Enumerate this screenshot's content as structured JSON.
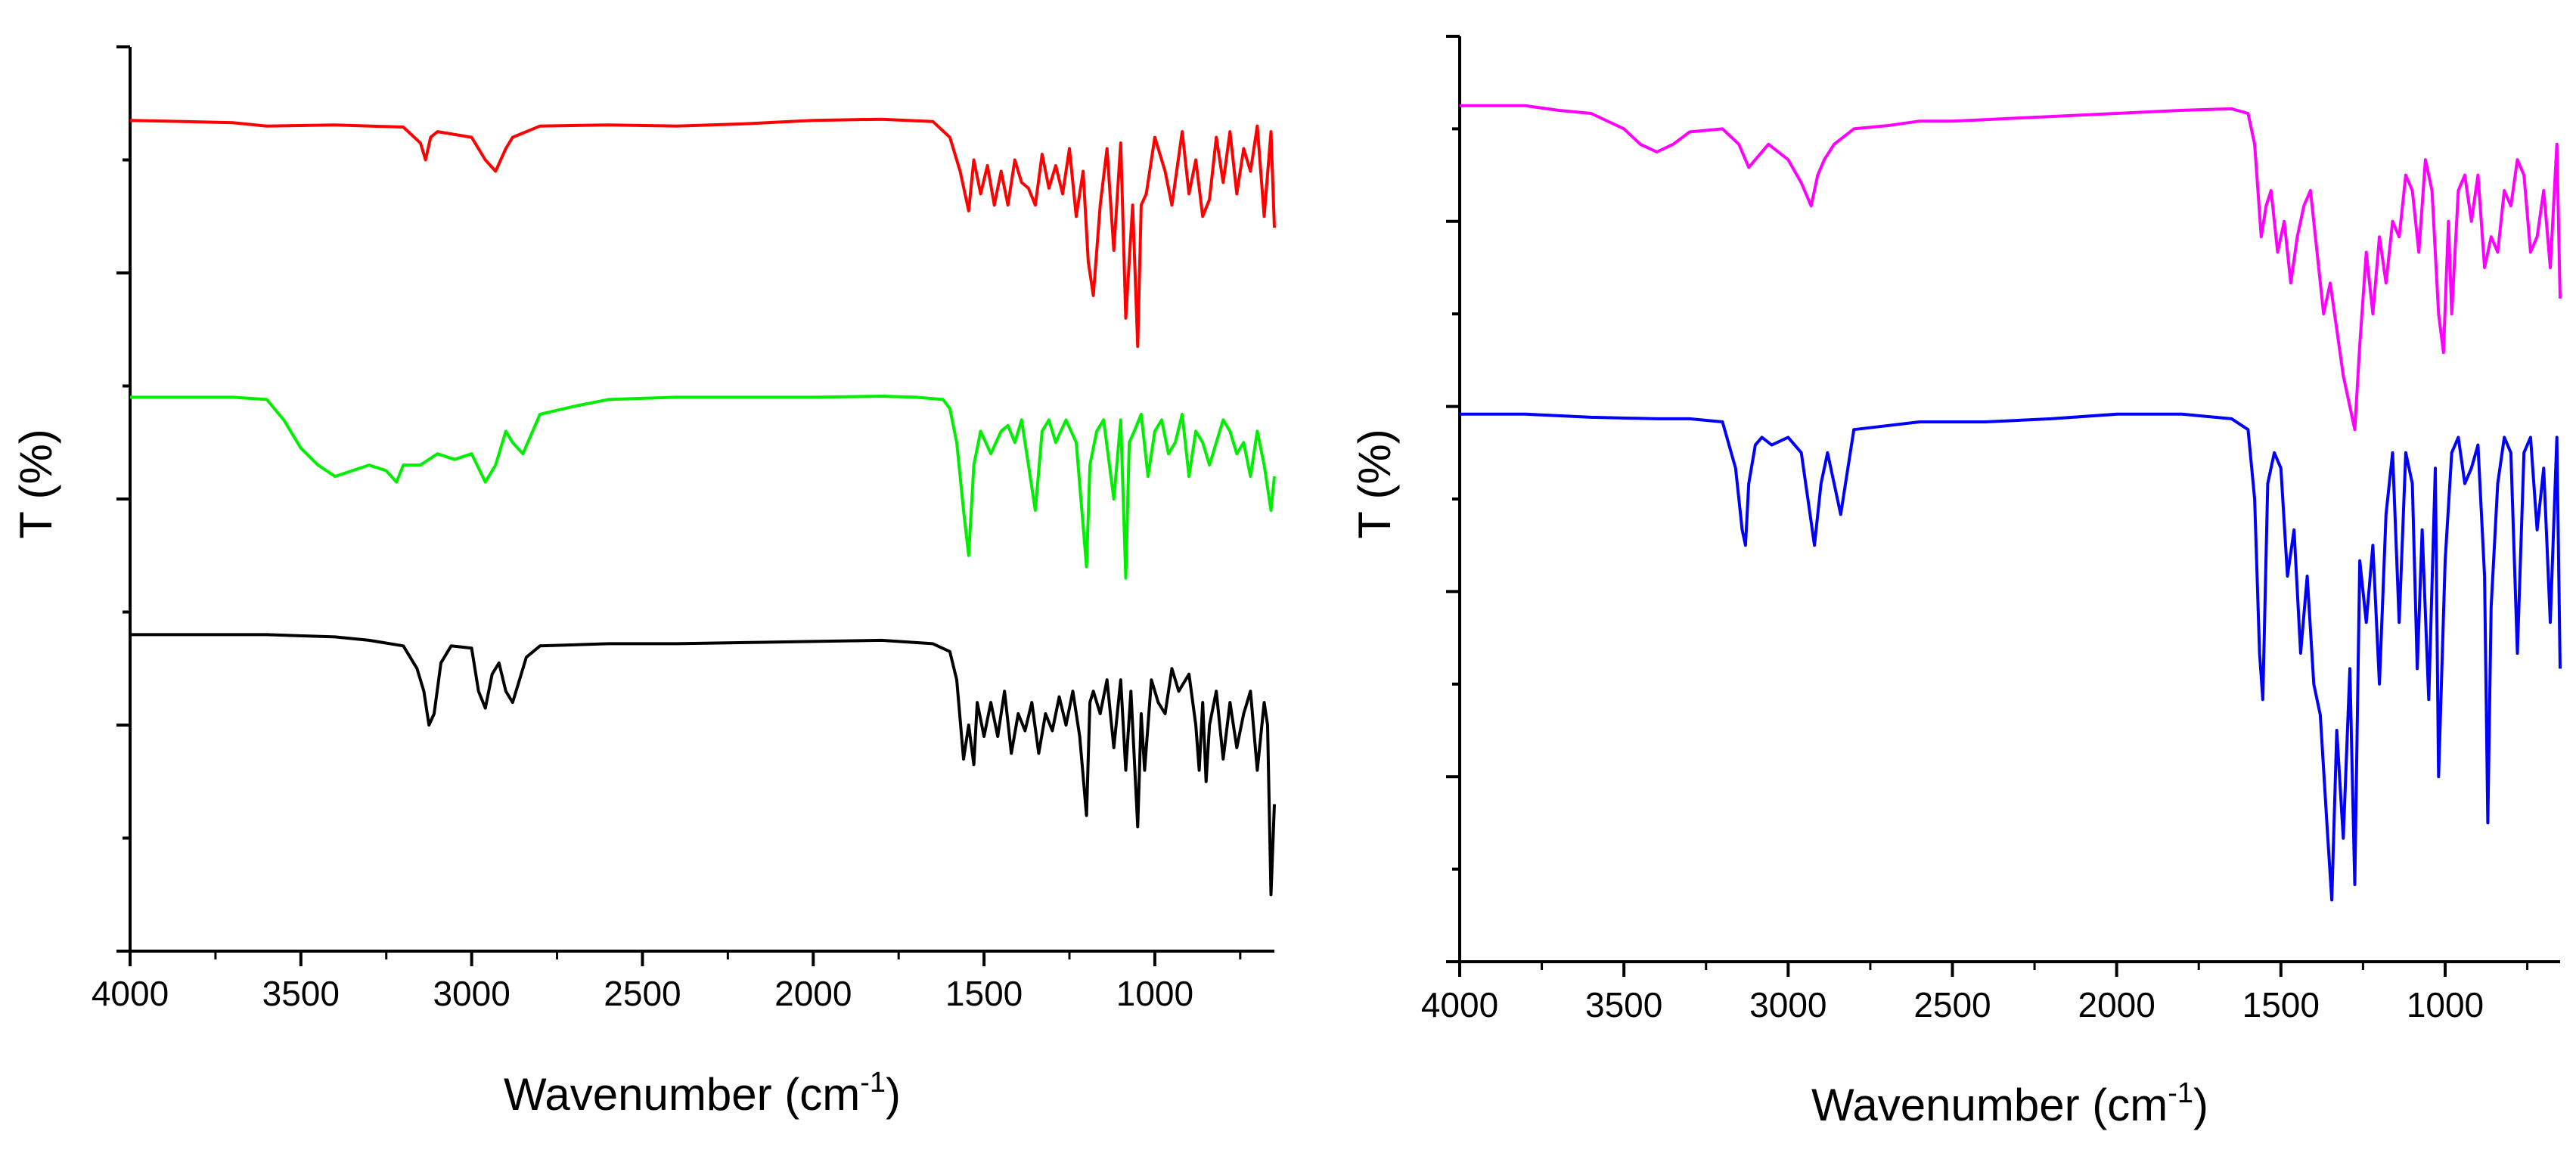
{
  "chart_data": [
    {
      "type": "line",
      "title": "",
      "xlabel": "Wavenumber (cm",
      "xlabel_sup": "-1",
      "xlabel_close": ")",
      "ylabel": "T (%)",
      "xlim": [
        4000,
        650
      ],
      "ylim": [
        0,
        8
      ],
      "x_ticks": [
        "4000",
        "3500",
        "3000",
        "2500",
        "2000",
        "1500",
        "1000"
      ],
      "x_tick_values": [
        4000,
        3500,
        3000,
        2500,
        2000,
        1500,
        1000
      ],
      "grid": false,
      "series": [
        {
          "name": "red",
          "color": "#ff0000",
          "x": [
            4000,
            3700,
            3600,
            3400,
            3200,
            3150,
            3135,
            3120,
            3100,
            3000,
            2960,
            2930,
            2900,
            2880,
            2800,
            2600,
            2400,
            2200,
            2000,
            1800,
            1650,
            1600,
            1570,
            1545,
            1530,
            1510,
            1490,
            1470,
            1450,
            1430,
            1410,
            1390,
            1370,
            1350,
            1330,
            1310,
            1290,
            1270,
            1250,
            1230,
            1210,
            1195,
            1180,
            1160,
            1140,
            1120,
            1100,
            1085,
            1065,
            1050,
            1040,
            1025,
            1000,
            970,
            950,
            920,
            900,
            880,
            860,
            840,
            820,
            800,
            780,
            760,
            740,
            720,
            700,
            680,
            660,
            650
          ],
          "values": [
            7.35,
            7.33,
            7.3,
            7.31,
            7.29,
            7.15,
            7.0,
            7.2,
            7.25,
            7.2,
            7.0,
            6.9,
            7.1,
            7.2,
            7.3,
            7.31,
            7.3,
            7.32,
            7.35,
            7.36,
            7.34,
            7.2,
            6.9,
            6.55,
            7.0,
            6.7,
            6.95,
            6.6,
            6.9,
            6.6,
            7.0,
            6.8,
            6.75,
            6.6,
            7.05,
            6.75,
            6.95,
            6.7,
            7.1,
            6.5,
            6.9,
            6.1,
            5.8,
            6.6,
            7.1,
            6.2,
            7.15,
            5.6,
            6.6,
            5.35,
            6.6,
            6.7,
            7.2,
            6.9,
            6.6,
            7.25,
            6.7,
            7.0,
            6.5,
            6.65,
            7.2,
            6.8,
            7.25,
            6.7,
            7.1,
            6.9,
            7.3,
            6.5,
            7.25,
            6.4
          ]
        },
        {
          "name": "green",
          "color": "#00ee00",
          "x": [
            4000,
            3800,
            3700,
            3600,
            3550,
            3500,
            3450,
            3400,
            3350,
            3300,
            3250,
            3220,
            3200,
            3150,
            3100,
            3050,
            3000,
            2960,
            2930,
            2900,
            2880,
            2850,
            2800,
            2700,
            2600,
            2400,
            2200,
            2000,
            1800,
            1700,
            1620,
            1600,
            1580,
            1560,
            1545,
            1530,
            1510,
            1480,
            1450,
            1430,
            1410,
            1390,
            1370,
            1350,
            1330,
            1310,
            1290,
            1260,
            1230,
            1200,
            1190,
            1170,
            1150,
            1120,
            1100,
            1085,
            1075,
            1060,
            1040,
            1020,
            1000,
            980,
            960,
            940,
            920,
            900,
            880,
            860,
            840,
            820,
            800,
            780,
            760,
            740,
            720,
            700,
            680,
            660,
            650
          ],
          "values": [
            4.9,
            4.9,
            4.9,
            4.88,
            4.7,
            4.45,
            4.3,
            4.2,
            4.25,
            4.3,
            4.25,
            4.15,
            4.3,
            4.3,
            4.4,
            4.35,
            4.4,
            4.15,
            4.3,
            4.6,
            4.5,
            4.4,
            4.75,
            4.82,
            4.88,
            4.9,
            4.9,
            4.9,
            4.91,
            4.9,
            4.88,
            4.8,
            4.5,
            3.9,
            3.5,
            4.3,
            4.6,
            4.4,
            4.6,
            4.65,
            4.5,
            4.7,
            4.3,
            3.9,
            4.6,
            4.7,
            4.5,
            4.7,
            4.5,
            3.4,
            4.3,
            4.6,
            4.7,
            4.0,
            4.7,
            3.3,
            4.5,
            4.6,
            4.75,
            4.2,
            4.6,
            4.7,
            4.4,
            4.5,
            4.75,
            4.2,
            4.6,
            4.5,
            4.3,
            4.5,
            4.7,
            4.6,
            4.4,
            4.5,
            4.2,
            4.6,
            4.3,
            3.9,
            4.2
          ]
        },
        {
          "name": "black",
          "color": "#000000",
          "x": [
            4000,
            3800,
            3600,
            3400,
            3300,
            3200,
            3160,
            3140,
            3125,
            3110,
            3090,
            3060,
            3000,
            2980,
            2960,
            2940,
            2920,
            2900,
            2880,
            2860,
            2840,
            2800,
            2600,
            2400,
            2200,
            2000,
            1800,
            1650,
            1600,
            1580,
            1560,
            1545,
            1530,
            1520,
            1500,
            1480,
            1460,
            1440,
            1420,
            1400,
            1380,
            1360,
            1340,
            1320,
            1300,
            1280,
            1260,
            1240,
            1220,
            1200,
            1190,
            1180,
            1160,
            1140,
            1120,
            1100,
            1085,
            1070,
            1050,
            1040,
            1030,
            1010,
            990,
            970,
            950,
            930,
            900,
            880,
            870,
            860,
            850,
            840,
            820,
            800,
            780,
            760,
            740,
            720,
            700,
            680,
            670,
            660,
            650
          ],
          "values": [
            2.8,
            2.8,
            2.8,
            2.78,
            2.75,
            2.7,
            2.5,
            2.3,
            2.0,
            2.1,
            2.55,
            2.7,
            2.68,
            2.3,
            2.15,
            2.45,
            2.55,
            2.3,
            2.2,
            2.4,
            2.6,
            2.7,
            2.72,
            2.72,
            2.73,
            2.74,
            2.75,
            2.72,
            2.65,
            2.4,
            1.7,
            2.0,
            1.65,
            2.2,
            1.9,
            2.2,
            1.9,
            2.3,
            1.75,
            2.1,
            1.95,
            2.2,
            1.75,
            2.1,
            1.95,
            2.25,
            2.0,
            2.3,
            1.9,
            1.2,
            2.2,
            2.3,
            2.1,
            2.4,
            1.8,
            2.4,
            1.6,
            2.3,
            1.1,
            2.1,
            1.6,
            2.4,
            2.2,
            2.1,
            2.5,
            2.3,
            2.45,
            2.0,
            1.6,
            2.2,
            1.5,
            2.0,
            2.3,
            1.7,
            2.2,
            1.8,
            2.1,
            2.3,
            1.6,
            2.2,
            2.0,
            0.5,
            1.3
          ]
        }
      ]
    },
    {
      "type": "line",
      "title": "",
      "xlabel": "Wavenumber (cm",
      "xlabel_sup": "-1",
      "xlabel_close": ")",
      "ylabel": "T (%)",
      "xlim": [
        4000,
        650
      ],
      "ylim": [
        0,
        6
      ],
      "x_ticks": [
        "4000",
        "3500",
        "3000",
        "2500",
        "2000",
        "1500",
        "1000"
      ],
      "x_tick_values": [
        4000,
        3500,
        3000,
        2500,
        2000,
        1500,
        1000
      ],
      "grid": false,
      "series": [
        {
          "name": "magenta",
          "color": "#ff00ff",
          "x": [
            4000,
            3800,
            3700,
            3600,
            3500,
            3450,
            3400,
            3350,
            3300,
            3200,
            3150,
            3120,
            3100,
            3060,
            3000,
            2960,
            2930,
            2910,
            2890,
            2860,
            2800,
            2700,
            2600,
            2500,
            2400,
            2300,
            2200,
            2000,
            1800,
            1650,
            1600,
            1580,
            1560,
            1545,
            1530,
            1510,
            1490,
            1470,
            1450,
            1430,
            1410,
            1390,
            1370,
            1350,
            1330,
            1310,
            1290,
            1275,
            1260,
            1240,
            1220,
            1200,
            1180,
            1160,
            1140,
            1120,
            1100,
            1080,
            1060,
            1040,
            1020,
            1005,
            990,
            980,
            960,
            940,
            920,
            900,
            880,
            860,
            840,
            820,
            800,
            780,
            760,
            740,
            720,
            700,
            680,
            660,
            650
          ],
          "values": [
            5.55,
            5.55,
            5.52,
            5.5,
            5.4,
            5.3,
            5.25,
            5.3,
            5.38,
            5.4,
            5.3,
            5.15,
            5.2,
            5.3,
            5.2,
            5.05,
            4.9,
            5.1,
            5.2,
            5.3,
            5.4,
            5.42,
            5.45,
            5.45,
            5.46,
            5.47,
            5.48,
            5.5,
            5.52,
            5.53,
            5.5,
            5.3,
            4.7,
            4.9,
            5.0,
            4.6,
            4.8,
            4.4,
            4.7,
            4.9,
            5.0,
            4.6,
            4.2,
            4.4,
            4.1,
            3.8,
            3.6,
            3.45,
            4.0,
            4.6,
            4.2,
            4.7,
            4.4,
            4.8,
            4.7,
            5.1,
            5.0,
            4.6,
            5.2,
            5.0,
            4.2,
            3.95,
            4.8,
            4.2,
            5.0,
            5.1,
            4.8,
            5.1,
            4.5,
            4.7,
            4.6,
            5.0,
            4.9,
            5.2,
            5.1,
            4.6,
            4.7,
            5.0,
            4.5,
            5.3,
            4.3
          ]
        },
        {
          "name": "blue",
          "color": "#0000ff",
          "x": [
            4000,
            3800,
            3600,
            3400,
            3300,
            3200,
            3160,
            3140,
            3130,
            3120,
            3100,
            3080,
            3050,
            3000,
            2960,
            2940,
            2920,
            2900,
            2880,
            2860,
            2840,
            2800,
            2600,
            2400,
            2200,
            2000,
            1800,
            1650,
            1600,
            1580,
            1565,
            1555,
            1540,
            1520,
            1500,
            1480,
            1460,
            1440,
            1420,
            1400,
            1380,
            1360,
            1345,
            1330,
            1310,
            1290,
            1275,
            1260,
            1240,
            1220,
            1200,
            1180,
            1160,
            1140,
            1120,
            1100,
            1085,
            1070,
            1050,
            1030,
            1020,
            1000,
            980,
            960,
            940,
            920,
            900,
            880,
            870,
            860,
            840,
            820,
            800,
            780,
            760,
            740,
            720,
            700,
            680,
            660,
            650
          ],
          "values": [
            3.55,
            3.55,
            3.53,
            3.52,
            3.52,
            3.5,
            3.2,
            2.8,
            2.7,
            3.1,
            3.35,
            3.4,
            3.35,
            3.4,
            3.3,
            3.0,
            2.7,
            3.1,
            3.3,
            3.1,
            2.9,
            3.45,
            3.5,
            3.5,
            3.52,
            3.55,
            3.55,
            3.52,
            3.45,
            3.0,
            2.0,
            1.7,
            3.1,
            3.3,
            3.2,
            2.5,
            2.8,
            2.0,
            2.5,
            1.8,
            1.6,
            0.9,
            0.4,
            1.5,
            0.8,
            1.9,
            0.5,
            2.6,
            2.2,
            2.7,
            1.8,
            2.9,
            3.3,
            2.2,
            3.3,
            3.1,
            1.9,
            2.8,
            1.7,
            3.2,
            1.2,
            2.6,
            3.3,
            3.4,
            3.1,
            3.2,
            3.35,
            2.5,
            0.9,
            2.3,
            3.1,
            3.4,
            3.3,
            2.0,
            3.3,
            3.4,
            2.8,
            3.2,
            2.2,
            3.4,
            1.9
          ]
        }
      ]
    }
  ]
}
